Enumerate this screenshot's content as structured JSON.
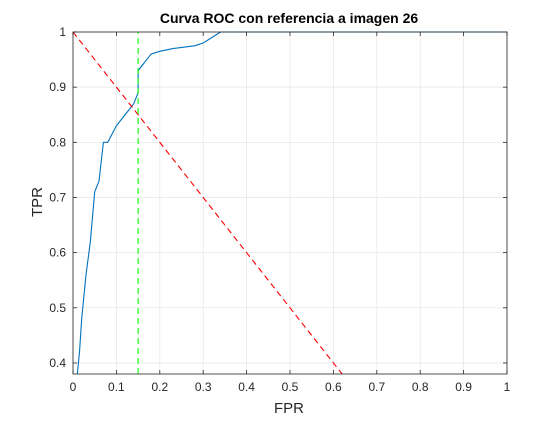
{
  "chart_data": {
    "type": "line",
    "title": "Curva ROC con referencia a imagen 26",
    "xlabel": "FPR",
    "ylabel": "TPR",
    "xlim": [
      0,
      1
    ],
    "ylim": [
      0.38,
      1
    ],
    "grid": true,
    "xticks": [
      0,
      0.1,
      0.2,
      0.3,
      0.4,
      0.5,
      0.6,
      0.7,
      0.8,
      0.9,
      1
    ],
    "yticks": [
      0.4,
      0.5,
      0.6,
      0.7,
      0.8,
      0.9,
      1
    ],
    "xtick_labels": [
      "0",
      "0.1",
      "0.2",
      "0.3",
      "0.4",
      "0.5",
      "0.6",
      "0.7",
      "0.8",
      "0.9",
      "1"
    ],
    "ytick_labels": [
      "0.4",
      "0.5",
      "0.6",
      "0.7",
      "0.8",
      "0.9",
      "1"
    ],
    "series": [
      {
        "color": "#0072bd",
        "style": "solid",
        "x": [
          0.01,
          0.015,
          0.02,
          0.03,
          0.04,
          0.05,
          0.06,
          0.07,
          0.08,
          0.1,
          0.12,
          0.14,
          0.15,
          0.15,
          0.16,
          0.17,
          0.18,
          0.2,
          0.23,
          0.28,
          0.3,
          0.31,
          0.32,
          0.34,
          0.35,
          0.6,
          1.0
        ],
        "y": [
          0.38,
          0.42,
          0.48,
          0.56,
          0.62,
          0.71,
          0.73,
          0.8,
          0.8,
          0.83,
          0.85,
          0.87,
          0.89,
          0.93,
          0.94,
          0.95,
          0.96,
          0.965,
          0.97,
          0.975,
          0.98,
          0.985,
          0.99,
          1.0,
          1.0,
          1.0,
          1.0
        ]
      },
      {
        "color": "#ff0000",
        "style": "dashed",
        "x": [
          0,
          0.62
        ],
        "y": [
          1,
          0.38
        ]
      },
      {
        "color": "#00ff00",
        "style": "dashed",
        "x": [
          0.15,
          0.15
        ],
        "y": [
          0.38,
          1
        ]
      }
    ]
  }
}
